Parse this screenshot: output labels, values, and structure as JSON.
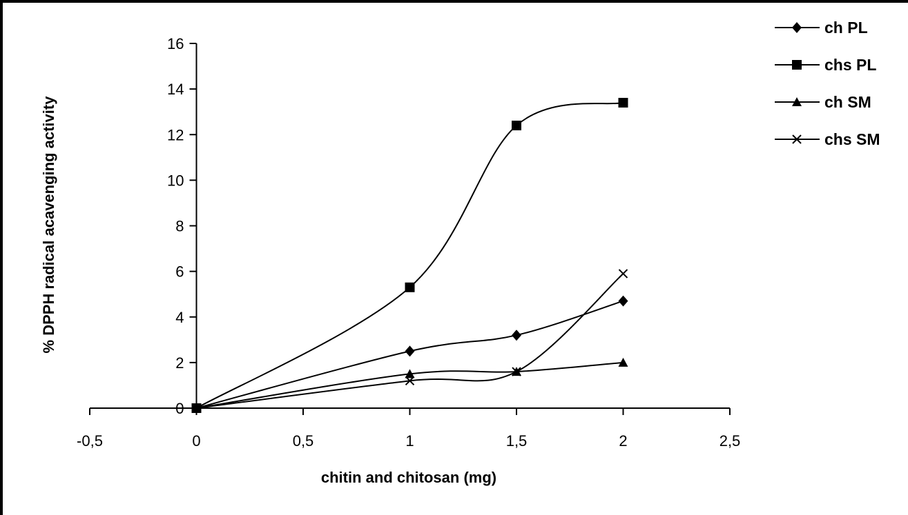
{
  "chart_data": {
    "type": "line",
    "title": "",
    "xlabel": "chitin and chitosan (mg)",
    "ylabel": "% DPPH radical acavenging activity",
    "xlim": [
      -0.5,
      2.5
    ],
    "ylim": [
      0,
      16
    ],
    "x_ticks": [
      "-0,5",
      "0",
      "0,5",
      "1",
      "1,5",
      "2",
      "2,5"
    ],
    "y_ticks": [
      "0",
      "2",
      "4",
      "6",
      "8",
      "10",
      "12",
      "14",
      "16"
    ],
    "grid": false,
    "legend_position": "top-right",
    "smooth": true,
    "series": [
      {
        "name": "ch PL",
        "marker": "diamond",
        "x": [
          0,
          1,
          1.5,
          2
        ],
        "y": [
          0,
          2.5,
          3.2,
          4.7
        ]
      },
      {
        "name": "chs PL",
        "marker": "square",
        "x": [
          0,
          1,
          1.5,
          2
        ],
        "y": [
          0,
          5.3,
          12.4,
          13.4
        ]
      },
      {
        "name": "ch SM",
        "marker": "triangle",
        "x": [
          0,
          1,
          1.5,
          2
        ],
        "y": [
          0,
          1.5,
          1.6,
          2.0
        ]
      },
      {
        "name": "chs SM",
        "marker": "x",
        "x": [
          0,
          1,
          1.5,
          2
        ],
        "y": [
          0,
          1.2,
          1.6,
          5.9
        ]
      }
    ]
  }
}
